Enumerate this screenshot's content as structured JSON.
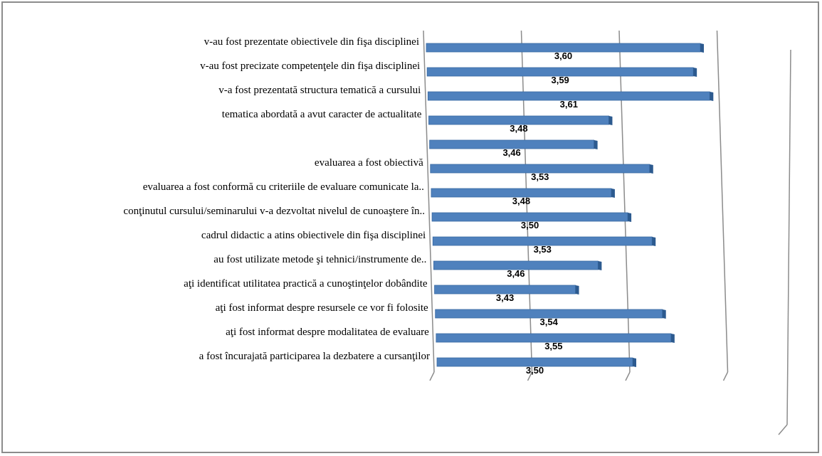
{
  "chart_data": {
    "type": "bar",
    "orientation": "horizontal",
    "style": "3d",
    "title": "",
    "xlabel": "",
    "ylabel": "",
    "grid": true,
    "legend": "none",
    "categories": [
      "v-au fost prezentate obiectivele din fişa disciplinei",
      "v-au fost precizate competenţele din fişa disciplinei",
      "v-a fost prezentată structura tematică a cursului",
      "tematica abordată a avut caracter de actualitate",
      "",
      "evaluarea a fost obiectivă",
      "evaluarea a fost conformă cu criteriile de evaluare comunicate la..",
      "conţinutul cursului/seminarului v-a dezvoltat nivelul de cunoaştere în..",
      "cadrul didactic a atins obiectivele din fişa disciplinei",
      "au fost utilizate metode şi tehnici/instrumente de..",
      "aţi identificat utilitatea practică a cunoştinţelor dobândite",
      "aţi fost informat despre resursele ce vor fi folosite",
      "aţi fost informat despre modalitatea de evaluare",
      "a fost încurajată participarea la dezbatere a cursanţilor"
    ],
    "values": [
      3.6,
      3.59,
      3.61,
      3.48,
      3.46,
      3.53,
      3.48,
      3.5,
      3.53,
      3.46,
      3.43,
      3.54,
      3.55,
      3.5
    ],
    "value_labels": [
      "3,60",
      "3,59",
      "3,61",
      "3,48",
      "3,46",
      "3,53",
      "3,48",
      "3,50",
      "3,53",
      "3,46",
      "3,43",
      "3,54",
      "3,55",
      "3,50"
    ],
    "xlim": [
      3.25,
      3.625
    ],
    "colors": {
      "bar_front": "#4f81bd",
      "bar_top": "#7ba3d8",
      "bar_side": "#2c5a8f",
      "grid": "#8c8c8c",
      "frame": "#8c8c8c"
    }
  }
}
